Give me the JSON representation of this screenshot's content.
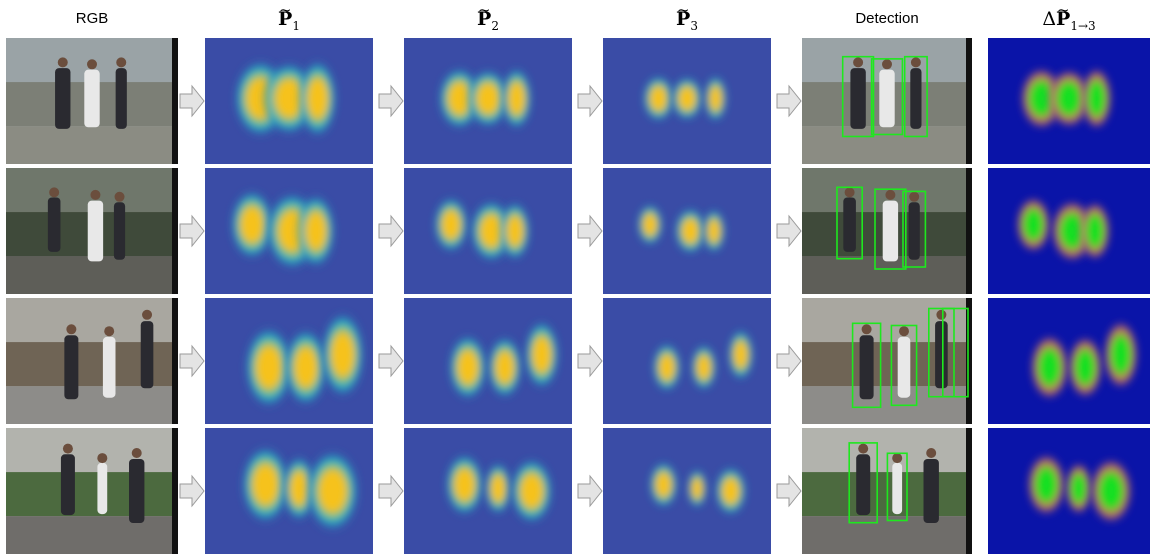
{
  "headers": {
    "rgb": "RGB",
    "p1_symbol": "P",
    "p1_index": "1",
    "p2_symbol": "P",
    "p2_index": "2",
    "p3_symbol": "P",
    "p3_index": "3",
    "detection": "Detection",
    "delta_prefix": "Δ",
    "delta_symbol": "P",
    "delta_index": "1→3"
  },
  "colors": {
    "heatmap_bg": "#3a4ca6",
    "heatmap_mid": "#1fb7c9",
    "heatmap_hot": "#f6c21d",
    "delta_bg": "#0a14a8",
    "delta_mid": "#e0745a",
    "delta_hot": "#19e020",
    "box": "#1ee81e",
    "arrow_fill": "#e4e4e4",
    "arrow_stroke": "#9a9a9a"
  },
  "rows": [
    {
      "name": "row-1-pedestrians-sidewalk",
      "boxes": 3
    },
    {
      "name": "row-2-pedestrians-trees",
      "boxes": 3
    },
    {
      "name": "row-3-pedestrians-crosswalk",
      "boxes": 4
    },
    {
      "name": "row-4-cyclists-road",
      "boxes": 2
    }
  ]
}
